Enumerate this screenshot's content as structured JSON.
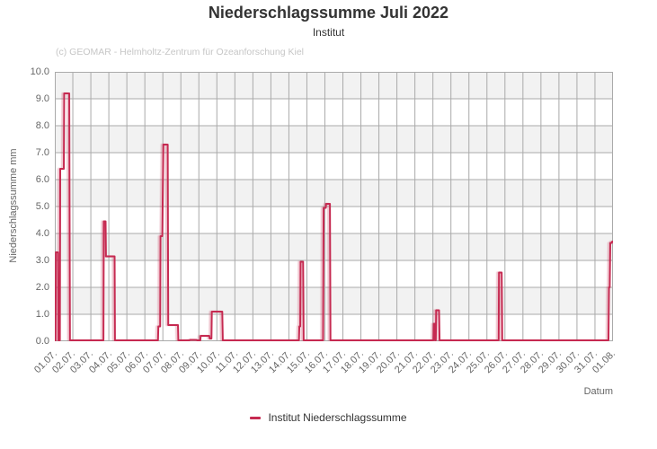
{
  "chart_data": {
    "type": "line",
    "title": "Niederschlagssumme Juli 2022",
    "subtitle": "Institut",
    "credit": "(c) GEOMAR - Helmholtz-Zentrum für Ozeanforschung Kiel",
    "xlabel": "Datum",
    "ylabel": "Niederschlagssumme mm",
    "ylim": [
      0,
      10
    ],
    "y_tick_labels": [
      "10.0",
      "9.0",
      "8.0",
      "7.0",
      "6.0",
      "5.0",
      "4.0",
      "3.0",
      "2.0",
      "1.0",
      "0.0"
    ],
    "x_tick_labels": [
      "01.07.",
      "02.07.",
      "03.07.",
      "04.07.",
      "05.07.",
      "06.07.",
      "07.07.",
      "08.07.",
      "09.07.",
      "10.07.",
      "11.07.",
      "12.07.",
      "13.07.",
      "14.07.",
      "15.07.",
      "16.07.",
      "17.07.",
      "18.07.",
      "19.07.",
      "20.07.",
      "21.07.",
      "22.07.",
      "23.07.",
      "24.07.",
      "25.07.",
      "26.07.",
      "27.07.",
      "28.07.",
      "29.07.",
      "30.07.",
      "31.07.",
      "01.08."
    ],
    "x_range_days": [
      0,
      31
    ],
    "grid": true,
    "legend_position": "bottom",
    "band_ranges": [
      [
        1,
        2
      ],
      [
        3,
        4
      ],
      [
        5,
        6
      ],
      [
        7,
        8
      ],
      [
        9,
        10
      ]
    ],
    "colors": {
      "line": "#c62a51",
      "band": "#f2f2f2",
      "grid": "#aaaaaa",
      "border": "#aaaaaa",
      "title": "#333333",
      "axis_text": "#666666",
      "credit": "#c6c6c6"
    },
    "series": [
      {
        "name": "Institut Niederschlagssumme",
        "color": "#c62a51",
        "points": [
          [
            0,
            0
          ],
          [
            0.04,
            0
          ],
          [
            0.06,
            3.3
          ],
          [
            0.18,
            3.3
          ],
          [
            0.2,
            0
          ],
          [
            0.28,
            0
          ],
          [
            0.3,
            6.4
          ],
          [
            0.5,
            6.4
          ],
          [
            0.52,
            9.2
          ],
          [
            0.8,
            9.2
          ],
          [
            0.84,
            0
          ],
          [
            2.7,
            0
          ],
          [
            2.72,
            4.45
          ],
          [
            2.82,
            4.45
          ],
          [
            2.84,
            3.15
          ],
          [
            3.32,
            3.15
          ],
          [
            3.34,
            0
          ],
          [
            5.73,
            0
          ],
          [
            5.75,
            0.55
          ],
          [
            5.85,
            0.55
          ],
          [
            5.87,
            3.9
          ],
          [
            5.97,
            3.9
          ],
          [
            6.0,
            5.7
          ],
          [
            6.03,
            7.3
          ],
          [
            6.27,
            7.3
          ],
          [
            6.3,
            0.6
          ],
          [
            6.84,
            0.6
          ],
          [
            6.86,
            0
          ],
          [
            7.48,
            0
          ],
          [
            7.5,
            0.05
          ],
          [
            7.88,
            0.05
          ],
          [
            7.9,
            0
          ],
          [
            8.08,
            0
          ],
          [
            8.1,
            0.2
          ],
          [
            8.58,
            0.2
          ],
          [
            8.6,
            0.1
          ],
          [
            8.7,
            0.1
          ],
          [
            8.72,
            1.1
          ],
          [
            9.3,
            1.1
          ],
          [
            9.33,
            0
          ],
          [
            13.56,
            0
          ],
          [
            13.58,
            0.55
          ],
          [
            13.63,
            0.55
          ],
          [
            13.65,
            2.95
          ],
          [
            13.79,
            2.95
          ],
          [
            13.82,
            0
          ],
          [
            14.9,
            0
          ],
          [
            14.93,
            4.95
          ],
          [
            15.05,
            4.95
          ],
          [
            15.07,
            5.1
          ],
          [
            15.28,
            5.1
          ],
          [
            15.31,
            0
          ],
          [
            21.03,
            0
          ],
          [
            21.05,
            0.65
          ],
          [
            21.1,
            0.65
          ],
          [
            21.12,
            0
          ],
          [
            21.16,
            0
          ],
          [
            21.18,
            1.15
          ],
          [
            21.34,
            1.15
          ],
          [
            21.37,
            0
          ],
          [
            24.65,
            0
          ],
          [
            24.67,
            2.55
          ],
          [
            24.82,
            2.55
          ],
          [
            24.85,
            0
          ],
          [
            30.75,
            0
          ],
          [
            30.78,
            2.0
          ],
          [
            30.82,
            2.0
          ],
          [
            30.85,
            3.65
          ],
          [
            30.94,
            3.65
          ],
          [
            30.96,
            3.7
          ],
          [
            31,
            3.7
          ]
        ]
      }
    ]
  }
}
